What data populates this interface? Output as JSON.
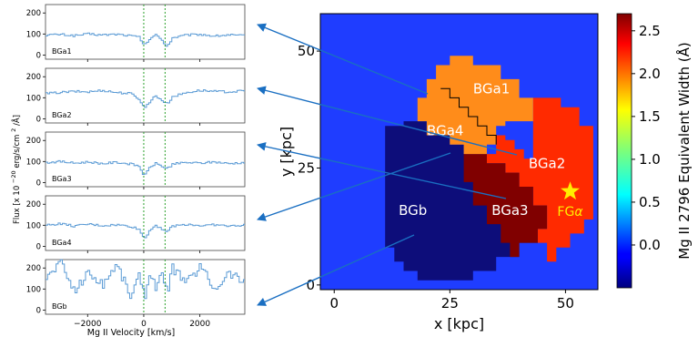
{
  "chart_data": [
    {
      "type": "line",
      "panel": "spectra",
      "xlabel": "Mg II Velocity [km/s]",
      "ylabel": "Flux [x 10$^{-20}$ erg/s/cm$^2$/Å]",
      "ylabel_parts": {
        "pre": "Flux [x 10",
        "exp1": "−20",
        "mid": " erg/s/cm",
        "exp2": "2",
        "post": "/Å]"
      },
      "xlim": [
        -3500,
        3600
      ],
      "xticks": [
        -2000,
        0,
        2000
      ],
      "xtick_labels": [
        "−2000",
        "0",
        "2000"
      ],
      "ylim": [
        -20,
        240
      ],
      "yticks": [
        0,
        100,
        200
      ],
      "ytick_labels": [
        "0",
        "100",
        "200"
      ],
      "reference_lines_kms": [
        0,
        760
      ],
      "reference_line_color": "#2ca02c",
      "line_color": "#5b9bd5",
      "series": [
        {
          "name": "BGa1",
          "x": [
            -3500,
            -3000,
            -2500,
            -2000,
            -1500,
            -1000,
            -500,
            -200,
            0,
            200,
            400,
            600,
            800,
            1000,
            1500,
            2000,
            2500,
            3000,
            3500
          ],
          "values": [
            95,
            98,
            92,
            100,
            95,
            99,
            92,
            85,
            45,
            80,
            95,
            75,
            40,
            82,
            95,
            98,
            90,
            96,
            92
          ]
        },
        {
          "name": "BGa2",
          "x": [
            -3500,
            -3000,
            -2500,
            -2000,
            -1500,
            -1000,
            -500,
            -200,
            0,
            200,
            400,
            600,
            800,
            1000,
            1500,
            2000,
            2500,
            3000,
            3500
          ],
          "values": [
            120,
            125,
            130,
            128,
            135,
            125,
            120,
            95,
            50,
            85,
            110,
            90,
            70,
            105,
            125,
            135,
            130,
            128,
            132
          ]
        },
        {
          "name": "BGa3",
          "x": [
            -3500,
            -3000,
            -2500,
            -2000,
            -1500,
            -1000,
            -500,
            -200,
            0,
            200,
            400,
            600,
            800,
            1000,
            1500,
            2000,
            2500,
            3000,
            3500
          ],
          "values": [
            95,
            100,
            92,
            98,
            90,
            96,
            88,
            78,
            30,
            75,
            90,
            80,
            65,
            88,
            95,
            92,
            98,
            90,
            95
          ]
        },
        {
          "name": "BGa4",
          "x": [
            -3500,
            -3000,
            -2500,
            -2000,
            -1500,
            -1000,
            -500,
            -200,
            0,
            200,
            400,
            600,
            800,
            1000,
            1500,
            2000,
            2500,
            3000,
            3500
          ],
          "values": [
            100,
            108,
            95,
            105,
            98,
            102,
            95,
            80,
            35,
            80,
            100,
            85,
            70,
            95,
            105,
            98,
            102,
            96,
            100
          ]
        },
        {
          "name": "BGb",
          "x": [
            -3500,
            -3000,
            -2500,
            -2000,
            -1500,
            -1000,
            -500,
            -200,
            0,
            200,
            400,
            600,
            800,
            1000,
            1500,
            2000,
            2500,
            3000,
            3500
          ],
          "values": [
            150,
            230,
            90,
            180,
            120,
            220,
            70,
            160,
            60,
            190,
            110,
            170,
            80,
            200,
            130,
            210,
            100,
            180,
            140
          ]
        }
      ]
    },
    {
      "type": "heatmap",
      "panel": "map",
      "xlabel": "x [kpc]",
      "ylabel": "y [kpc]",
      "xlim": [
        -3,
        57
      ],
      "ylim": [
        -1,
        58
      ],
      "xticks": [
        0,
        25,
        50
      ],
      "yticks": [
        0,
        25,
        50
      ],
      "background_color": "#1f3dff",
      "colorbar": {
        "label": "Mg II 2796 Equivalent Width (Å)",
        "range": [
          -0.5,
          2.7
        ],
        "ticks": [
          0.0,
          0.5,
          1.0,
          1.5,
          2.0,
          2.5
        ],
        "tick_labels": [
          "0.0",
          "0.5",
          "1.0",
          "1.5",
          "2.0",
          "2.5"
        ]
      },
      "regions": [
        {
          "label": "BGb",
          "value": -0.35,
          "color": "#0d0d7a"
        },
        {
          "label": "BGa3",
          "value": 2.65,
          "color": "#800000"
        },
        {
          "label": "BGa2",
          "value": 2.3,
          "color": "#ff2a00"
        },
        {
          "label": "BGa1",
          "value": 1.9,
          "color": "#ff8c1a"
        },
        {
          "label": "BGa4",
          "value": 1.9,
          "color": "#ff8c1a"
        }
      ],
      "marker": {
        "label": "FGα",
        "label_parts": {
          "main": "FG",
          "greek": "α"
        },
        "x": 51,
        "y": 20,
        "symbol": "star",
        "color": "#ffee00"
      }
    }
  ]
}
